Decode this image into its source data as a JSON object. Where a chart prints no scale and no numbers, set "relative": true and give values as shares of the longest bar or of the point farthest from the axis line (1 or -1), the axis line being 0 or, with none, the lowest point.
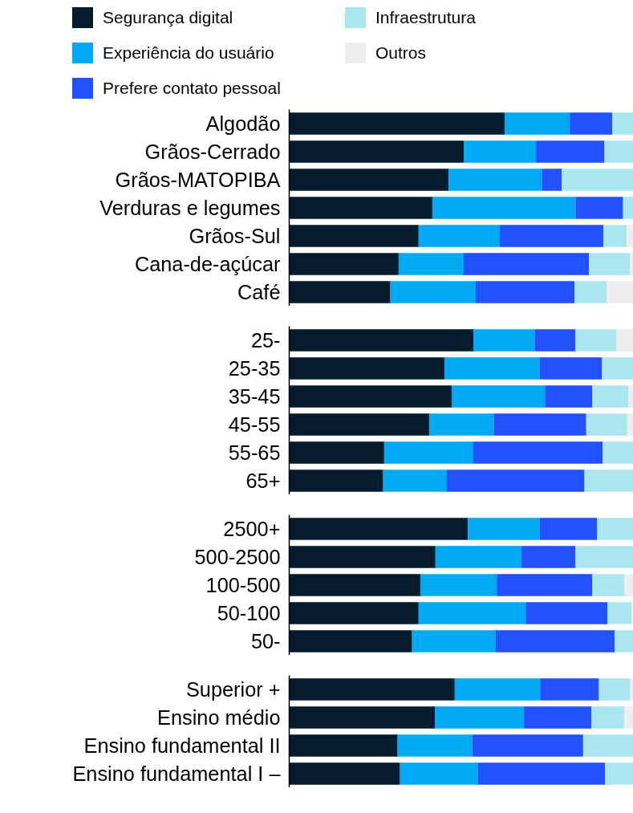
{
  "chart_data": [
    {
      "type": "bar",
      "orientation": "horizontal",
      "stacked": true,
      "relative": true,
      "legend": "top",
      "tick_labels": "y",
      "grid": false,
      "categories": [
        "Algodão",
        "Grãos-Cerrado",
        "Grãos-MATOPIBA",
        "Verduras e legumes",
        "Grãos-Sul",
        "Cana-de-açúcar",
        "Café"
      ],
      "series": [
        {
          "name": "Segurança digital",
          "color": "#051c2c",
          "values": [
            0.626,
            0.507,
            0.463,
            0.416,
            0.376,
            0.318,
            0.294
          ]
        },
        {
          "name": "Experiência do usuário",
          "color": "#00a9f4",
          "values": [
            0.189,
            0.21,
            0.271,
            0.416,
            0.236,
            0.189,
            0.248
          ]
        },
        {
          "name": "Prefere contato pessoal",
          "color": "#2251ff",
          "values": [
            0.124,
            0.199,
            0.058,
            0.138,
            0.301,
            0.364,
            0.287
          ]
        },
        {
          "name": "Infraestrutura",
          "color": "#aae6f0",
          "values": [
            0.061,
            0.084,
            0.208,
            0.03,
            0.068,
            0.119,
            0.093
          ]
        },
        {
          "name": "Outros",
          "color": "#eeeeee",
          "values": [
            0,
            0,
            0,
            0,
            0.019,
            0.009,
            0.077
          ]
        }
      ]
    },
    {
      "type": "bar",
      "orientation": "horizontal",
      "stacked": true,
      "relative": true,
      "tick_labels": "y",
      "grid": false,
      "categories": [
        "25-",
        "25-35",
        "35-45",
        "45-55",
        "55-65",
        "65+"
      ],
      "series": [
        {
          "color": "#051c2c",
          "values": [
            0.535,
            0.451,
            0.472,
            0.407,
            0.276,
            0.273
          ]
        },
        {
          "color": "#00a9f4",
          "values": [
            0.178,
            0.276,
            0.271,
            0.187,
            0.259,
            0.185
          ]
        },
        {
          "color": "#2251ff",
          "values": [
            0.119,
            0.182,
            0.138,
            0.269,
            0.376,
            0.4
          ]
        },
        {
          "color": "#aae6f0",
          "values": [
            0.119,
            0.091,
            0.105,
            0.119,
            0.089,
            0.142
          ]
        },
        {
          "color": "#eeeeee",
          "values": [
            0.049,
            0,
            0.014,
            0.018,
            0,
            0
          ]
        }
      ]
    },
    {
      "type": "bar",
      "orientation": "horizontal",
      "stacked": true,
      "relative": true,
      "tick_labels": "y",
      "grid": false,
      "categories": [
        "2500+",
        "500-2500",
        "100-500",
        "50-100",
        "50-"
      ],
      "series": [
        {
          "color": "#051c2c",
          "values": [
            0.519,
            0.425,
            0.381,
            0.376,
            0.357
          ]
        },
        {
          "color": "#00a9f4",
          "values": [
            0.208,
            0.25,
            0.222,
            0.311,
            0.243
          ]
        },
        {
          "color": "#2251ff",
          "values": [
            0.168,
            0.157,
            0.278,
            0.238,
            0.346
          ]
        },
        {
          "color": "#aae6f0",
          "values": [
            0.105,
            0.168,
            0.093,
            0.07,
            0.054
          ]
        },
        {
          "color": "#eeeeee",
          "values": [
            0,
            0,
            0.026,
            0.005,
            0
          ]
        }
      ]
    },
    {
      "type": "bar",
      "orientation": "horizontal",
      "stacked": true,
      "relative": true,
      "tick_labels": "y",
      "grid": false,
      "categories": [
        "Superior +",
        "Ensino médio",
        "Ensino fundamental II",
        "Ensino fundamental I –"
      ],
      "series": [
        {
          "color": "#051c2c",
          "values": [
            0.481,
            0.423,
            0.315,
            0.322
          ]
        },
        {
          "color": "#00a9f4",
          "values": [
            0.248,
            0.259,
            0.217,
            0.227
          ]
        },
        {
          "color": "#2251ff",
          "values": [
            0.171,
            0.196,
            0.322,
            0.369
          ]
        },
        {
          "color": "#aae6f0",
          "values": [
            0.091,
            0.096,
            0.145,
            0.082
          ]
        },
        {
          "color": "#eeeeee",
          "values": [
            0.009,
            0.026,
            0,
            0
          ]
        }
      ]
    }
  ]
}
